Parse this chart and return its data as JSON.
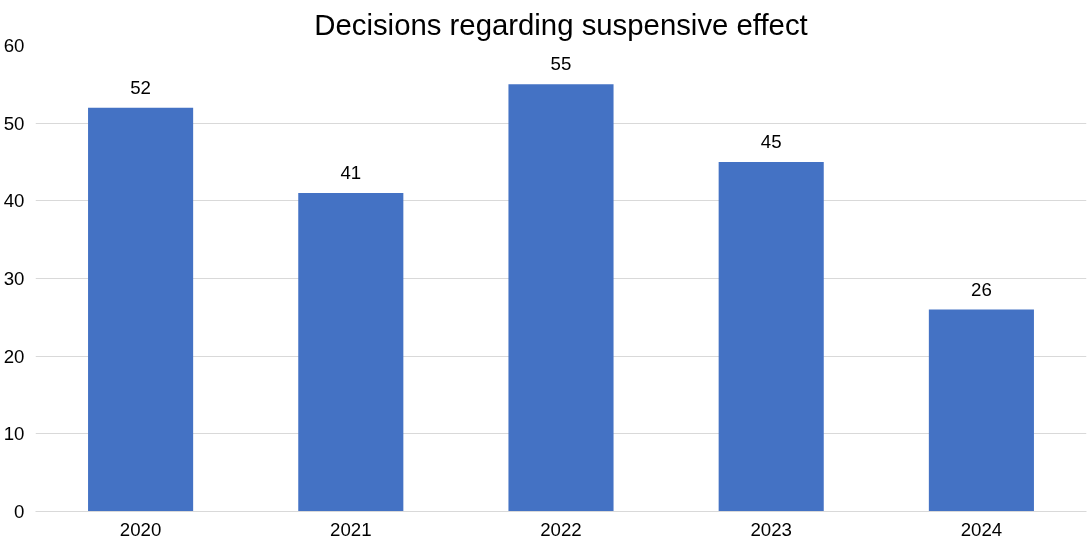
{
  "chart_data": {
    "type": "bar",
    "title": "Decisions regarding suspensive effect",
    "categories": [
      "2020",
      "2021",
      "2022",
      "2023",
      "2024"
    ],
    "values": [
      52,
      41,
      55,
      45,
      26
    ],
    "color": "#4472c4",
    "ylim": [
      0,
      60
    ],
    "yticks": [
      0,
      10,
      20,
      30,
      40,
      50,
      60
    ],
    "grid": "y",
    "data_labels": true
  }
}
